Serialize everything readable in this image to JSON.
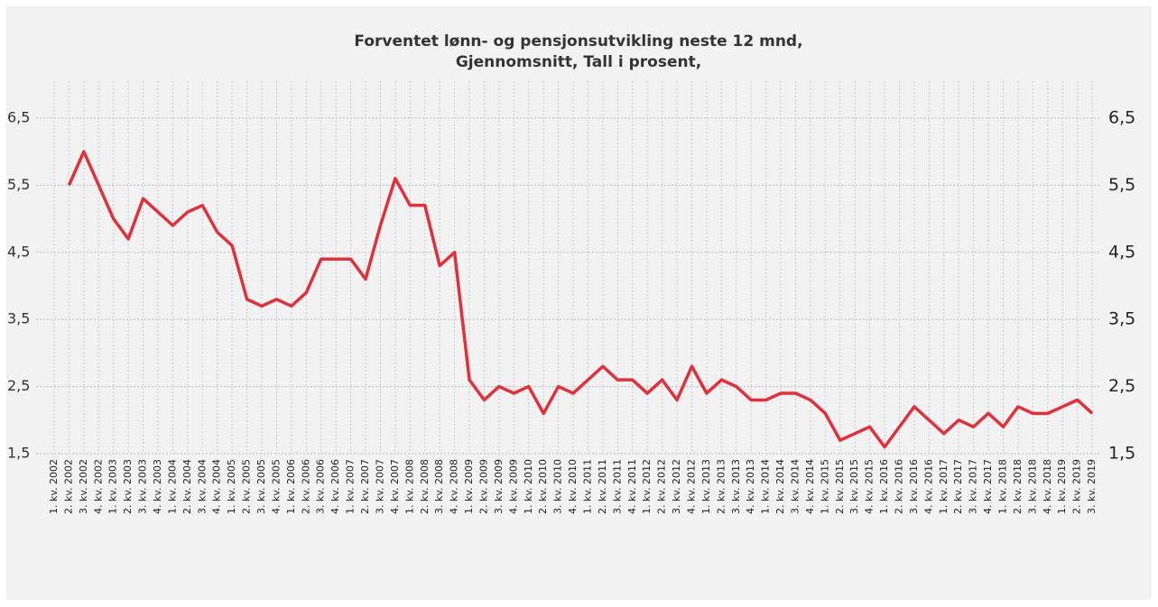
{
  "chart_data": {
    "type": "line",
    "title": "Forventet lønn- og pensjonsutvikling neste 12 mnd,",
    "subtitle": "Gjennomsnitt, Tall i prosent,",
    "categories": [
      "1. kv. 2002",
      "2. kv. 2002",
      "3. kv. 2002",
      "4. kv. 2002",
      "1. kv. 2003",
      "2. kv. 2003",
      "3. kv. 2003",
      "4. kv. 2003",
      "1. kv. 2004",
      "2. kv. 2004",
      "3. kv. 2004",
      "4. kv. 2004",
      "1. kv. 2005",
      "2. kv. 2005",
      "3. kv. 2005",
      "4. kv. 2005",
      "1. kv. 2006",
      "2. kv. 2006",
      "3. kv. 2006",
      "4. kv. 2006",
      "1. kv. 2007",
      "2. kv. 2007",
      "3. kv. 2007",
      "4. kv. 2007",
      "1. kv. 2008",
      "2. kv. 2008",
      "3. kv. 2008",
      "4. kv. 2008",
      "1. kv. 2009",
      "2. kv. 2009",
      "3. kv. 2009",
      "4. kv. 2009",
      "1. kv. 2010",
      "2. kv. 2010",
      "3. kv. 2010",
      "4. kv. 2010",
      "1. kv. 2011",
      "2. kv. 2011",
      "3. kv. 2011",
      "4. kv. 2011",
      "1. kv. 2012",
      "2. kv. 2012",
      "3. kv. 2012",
      "4. kv. 2012",
      "1. kv. 2013",
      "2. kv. 2013",
      "3. kv. 2013",
      "4. kv. 2013",
      "1. kv. 2014",
      "2. kv. 2014",
      "3. kv. 2014",
      "4. kv. 2014",
      "1. kv. 2015",
      "2. kv. 2015",
      "3. kv. 2015",
      "4. kv. 2015",
      "1. kv. 2016",
      "2. kv. 2016",
      "3. kv. 2016",
      "4. kv. 2016",
      "1. kv. 2017",
      "2. kv. 2017",
      "3. kv. 2017",
      "4. kv. 2017",
      "1. kv. 2018",
      "2. kv. 2018",
      "3. kv. 2018",
      "4. kv. 2018",
      "1. kv. 2019",
      "2. kv. 2019",
      "3. kv. 2019"
    ],
    "series": [
      {
        "color": "#e0303c",
        "values": [
          null,
          5.5,
          6.0,
          5.5,
          5.0,
          4.7,
          5.3,
          5.1,
          4.9,
          5.1,
          5.2,
          4.8,
          4.6,
          3.8,
          3.7,
          3.8,
          3.7,
          3.9,
          4.4,
          4.4,
          4.4,
          4.1,
          4.9,
          5.6,
          5.2,
          5.2,
          4.3,
          4.5,
          2.6,
          2.3,
          2.5,
          2.4,
          2.5,
          2.1,
          2.5,
          2.4,
          2.6,
          2.8,
          2.6,
          2.6,
          2.4,
          2.6,
          2.3,
          2.8,
          2.4,
          2.6,
          2.5,
          2.3,
          2.3,
          2.4,
          2.4,
          2.3,
          2.1,
          1.7,
          1.8,
          1.9,
          1.6,
          1.9,
          2.2,
          2.0,
          1.8,
          2.0,
          1.9,
          2.1,
          1.9,
          2.2,
          2.1,
          2.1,
          2.2,
          2.3,
          2.1
        ]
      }
    ],
    "ylim": [
      1.5,
      7.05
    ],
    "yticks": [
      {
        "value": 1.5,
        "label": "1,5"
      },
      {
        "value": 2.5,
        "label": "2,5"
      },
      {
        "value": 3.5,
        "label": "3,5"
      },
      {
        "value": 4.5,
        "label": "4,5"
      },
      {
        "value": 5.5,
        "label": "5,5"
      },
      {
        "value": 6.5,
        "label": "6,5"
      }
    ],
    "grid": true
  }
}
